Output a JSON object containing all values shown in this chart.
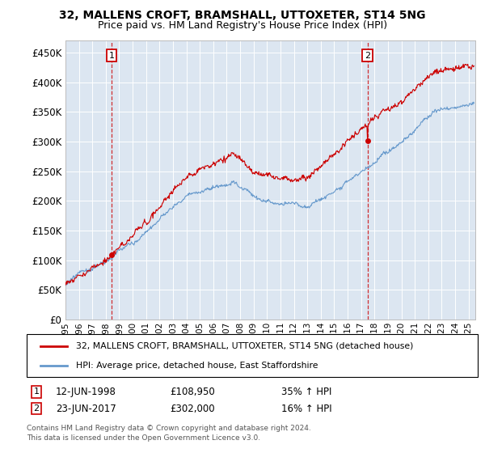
{
  "title": "32, MALLENS CROFT, BRAMSHALL, UTTOXETER, ST14 5NG",
  "subtitle": "Price paid vs. HM Land Registry's House Price Index (HPI)",
  "background_color": "#dce6f1",
  "plot_bg_color": "#dce6f1",
  "legend_label_red": "32, MALLENS CROFT, BRAMSHALL, UTTOXETER, ST14 5NG (detached house)",
  "legend_label_blue": "HPI: Average price, detached house, East Staffordshire",
  "marker1_year": 1998.44,
  "marker1_price": 108950,
  "marker2_year": 2017.47,
  "marker2_price": 302000,
  "footer_line1": "Contains HM Land Registry data © Crown copyright and database right 2024.",
  "footer_line2": "This data is licensed under the Open Government Licence v3.0.",
  "annotation1": "12-JUN-1998",
  "annotation1_price": "£108,950",
  "annotation1_pct": "35% ↑ HPI",
  "annotation2": "23-JUN-2017",
  "annotation2_price": "£302,000",
  "annotation2_pct": "16% ↑ HPI",
  "ylim": [
    0,
    470000
  ],
  "xlim_start": 1995.0,
  "xlim_end": 2025.5,
  "yticks": [
    0,
    50000,
    100000,
    150000,
    200000,
    250000,
    300000,
    350000,
    400000,
    450000
  ],
  "ytick_labels": [
    "£0",
    "£50K",
    "£100K",
    "£150K",
    "£200K",
    "£250K",
    "£300K",
    "£350K",
    "£400K",
    "£450K"
  ],
  "xticks": [
    1995,
    1996,
    1997,
    1998,
    1999,
    2000,
    2001,
    2002,
    2003,
    2004,
    2005,
    2006,
    2007,
    2008,
    2009,
    2010,
    2011,
    2012,
    2013,
    2014,
    2015,
    2016,
    2017,
    2018,
    2019,
    2020,
    2021,
    2022,
    2023,
    2024,
    2025
  ],
  "red_color": "#cc0000",
  "blue_color": "#6699cc",
  "marker_box_color": "#cc0000",
  "grid_color": "#cccccc",
  "n_points": 730
}
